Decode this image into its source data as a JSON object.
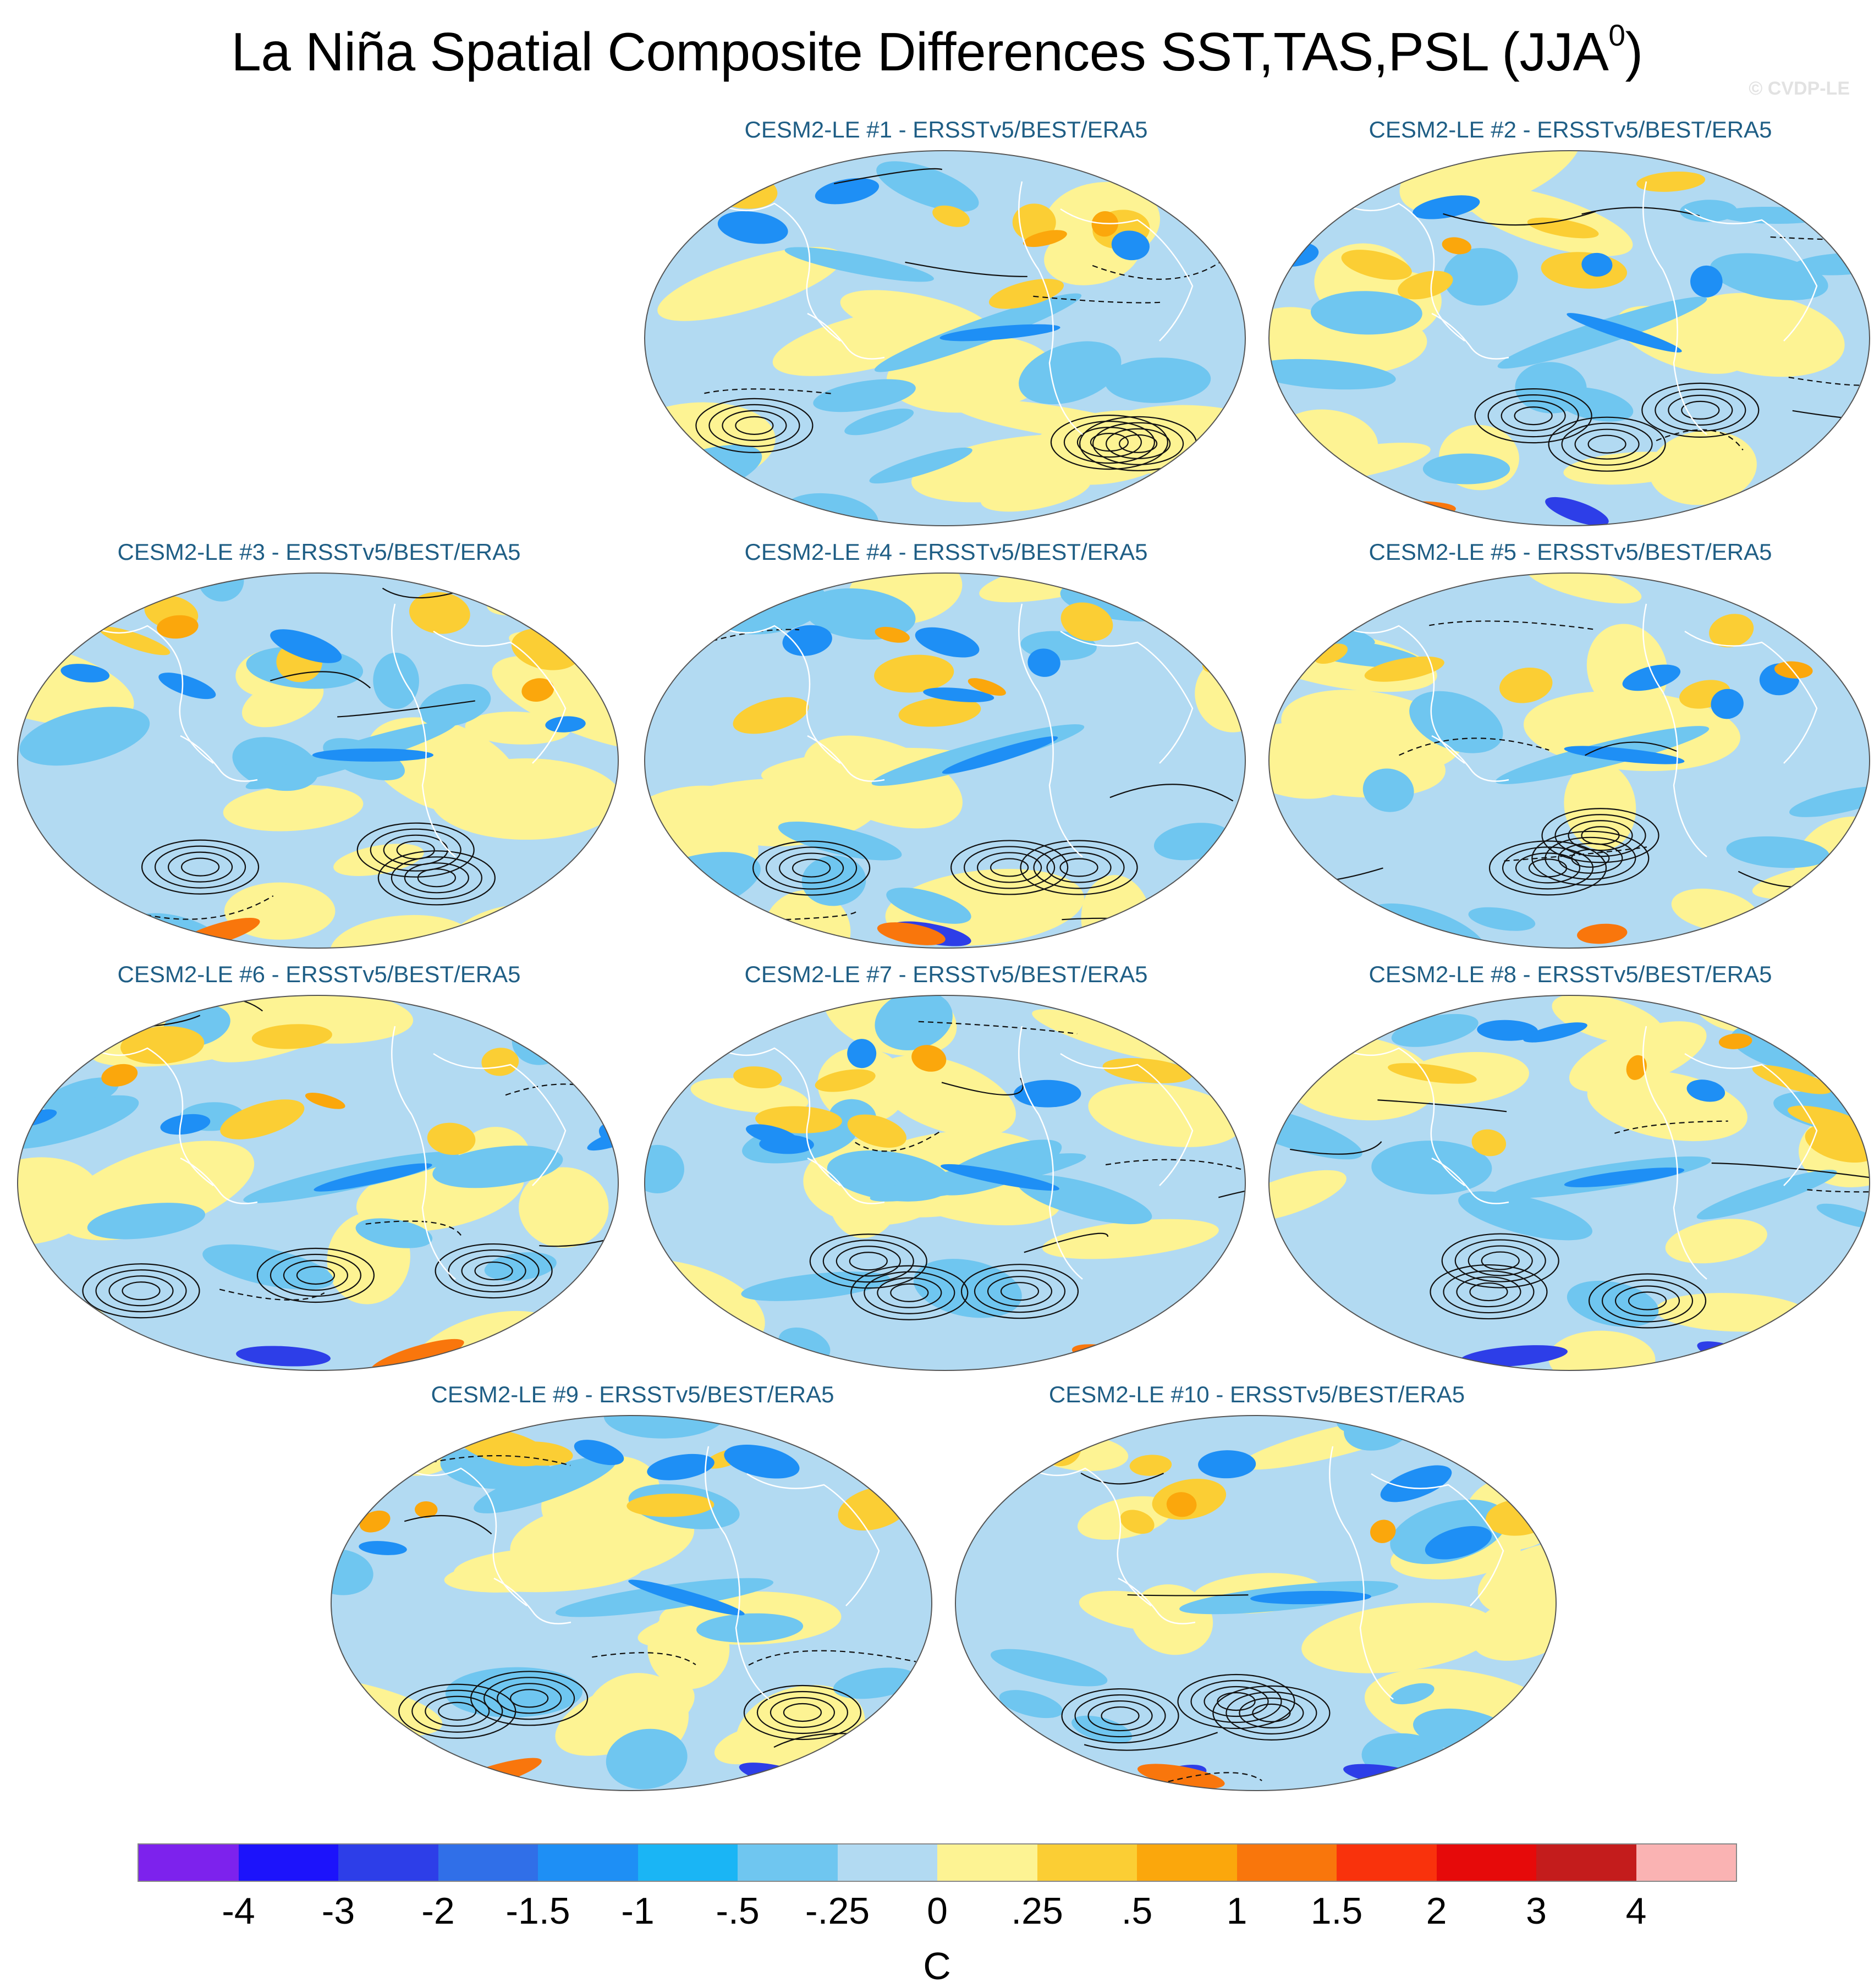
{
  "title": "La Niña Spatial Composite Differences SST,TAS,PSL (JJA",
  "title_superscript": "0",
  "title_close": ")",
  "watermark": "© CVDP-LE",
  "panels": [
    {
      "label": "CESM2-LE #1 - ERSSTv5/BEST/ERA5"
    },
    {
      "label": "CESM2-LE #2 - ERSSTv5/BEST/ERA5"
    },
    {
      "label": "CESM2-LE #3 - ERSSTv5/BEST/ERA5"
    },
    {
      "label": "CESM2-LE #4 - ERSSTv5/BEST/ERA5"
    },
    {
      "label": "CESM2-LE #5 - ERSSTv5/BEST/ERA5"
    },
    {
      "label": "CESM2-LE #6 - ERSSTv5/BEST/ERA5"
    },
    {
      "label": "CESM2-LE #7 - ERSSTv5/BEST/ERA5"
    },
    {
      "label": "CESM2-LE #8 - ERSSTv5/BEST/ERA5"
    },
    {
      "label": "CESM2-LE #9 - ERSSTv5/BEST/ERA5"
    },
    {
      "label": "CESM2-LE #10 - ERSSTv5/BEST/ERA5"
    }
  ],
  "colorbar": {
    "labels": [
      "-4",
      "-3",
      "-2",
      "-1.5",
      "-1",
      "-.5",
      "-.25",
      "0",
      ".25",
      ".5",
      "1",
      "1.5",
      "2",
      "3",
      "4"
    ],
    "colors": [
      "#7d22ed",
      "#1c13fb",
      "#2d3ee8",
      "#306fe8",
      "#1e8ff5",
      "#1ab5f5",
      "#6fc6f0",
      "#b2daf2",
      "#fdf393",
      "#fbce34",
      "#fba70c",
      "#f9760c",
      "#f9320c",
      "#e60a0a",
      "#c41c1c",
      "#fab3b3"
    ],
    "units": "C"
  },
  "chart_data": {
    "type": "heatmap",
    "title": "La Niña Spatial Composite Differences SST,TAS,PSL (JJA0)",
    "projection": "Robinson (Pacific-centered)",
    "variables": {
      "shaded": "SST/TAS difference (C)",
      "contours": "PSL difference (solid positive, dashed negative)"
    },
    "contour_levels": [
      -4,
      -3,
      -2,
      -1.5,
      -1,
      -0.5,
      -0.25,
      0,
      0.25,
      0.5,
      1,
      1.5,
      2,
      3,
      4
    ],
    "units": "C",
    "members": [
      "CESM2-LE #1",
      "CESM2-LE #2",
      "CESM2-LE #3",
      "CESM2-LE #4",
      "CESM2-LE #5",
      "CESM2-LE #6",
      "CESM2-LE #7",
      "CESM2-LE #8",
      "CESM2-LE #9",
      "CESM2-LE #10"
    ],
    "observations": "ERSSTv5/BEST/ERA5"
  }
}
